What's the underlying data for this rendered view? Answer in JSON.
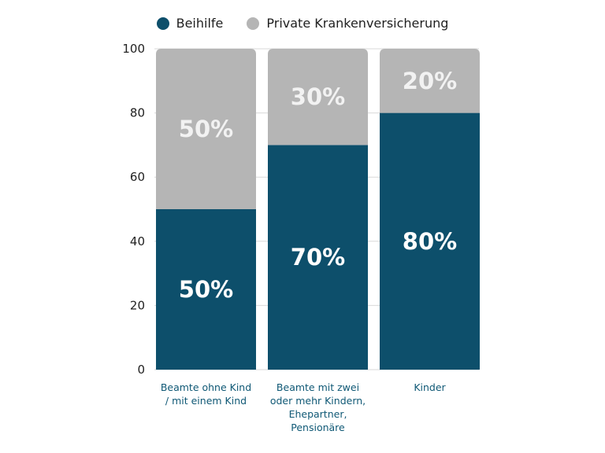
{
  "chart_data": {
    "type": "bar",
    "stacked": true,
    "categories": [
      "Beamte ohne Kind / mit einem Kind",
      "Beamte mit zwei oder mehr Kindern, Ehepartner, Pensionäre",
      "Kinder"
    ],
    "category_lines": [
      [
        "Beamte ohne Kind",
        "/ mit einem Kind"
      ],
      [
        "Beamte mit zwei",
        "oder mehr Kindern,",
        "Ehepartner,",
        "Pensionäre"
      ],
      [
        "Kinder"
      ]
    ],
    "series": [
      {
        "name": "Beihilfe",
        "values": [
          50,
          70,
          80
        ],
        "labels": [
          "50%",
          "70%",
          "80%"
        ],
        "color": "#0d4f6b",
        "label_color": "#ffffff"
      },
      {
        "name": "Private Krankenversicherung",
        "values": [
          50,
          30,
          20
        ],
        "labels": [
          "50%",
          "30%",
          "20%"
        ],
        "color": "#b5b5b5",
        "label_color": "#f2f2f2"
      }
    ],
    "ylim": [
      0,
      100
    ],
    "yticks": [
      "0",
      "20",
      "40",
      "60",
      "80",
      "100"
    ],
    "grid": true,
    "legend_position": "top",
    "title": "",
    "xlabel": "",
    "ylabel": ""
  }
}
